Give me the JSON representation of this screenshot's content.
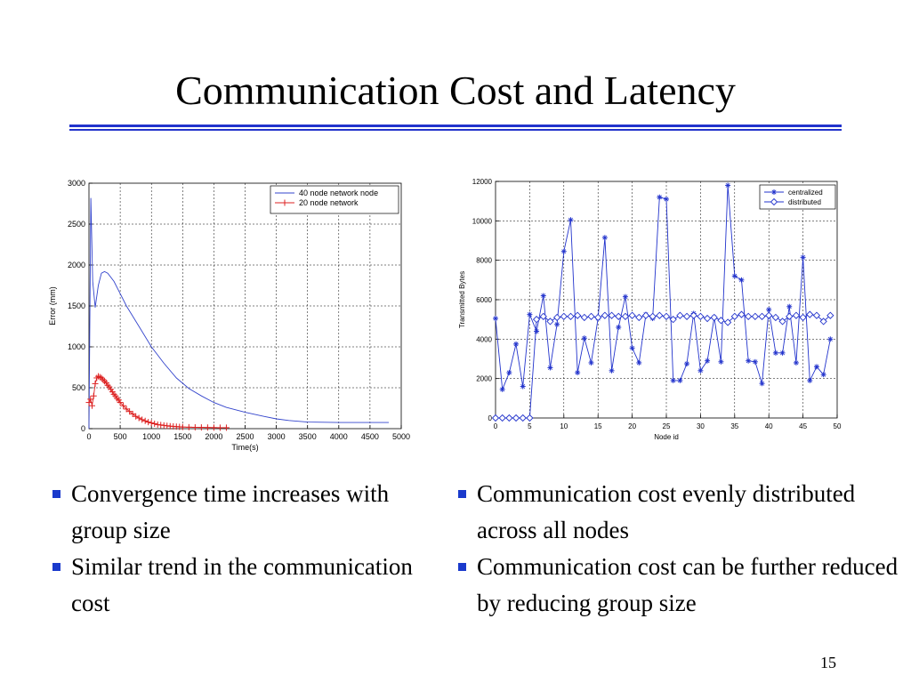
{
  "slide": {
    "title": "Communication Cost and Latency",
    "page_number": "15",
    "accent_color": "#2233cc"
  },
  "bullets_left": [
    {
      "text": "Convergence time increases with group size"
    },
    {
      "text": "Similar trend in the communication cost"
    }
  ],
  "bullets_right": [
    {
      "text": "Communication cost evenly distributed across all nodes"
    },
    {
      "text": "Communication cost can be further reduced by reducing group size"
    }
  ],
  "chart_data": [
    {
      "type": "line",
      "title": "",
      "xlabel": "Time(s)",
      "ylabel": "Error (mm)",
      "xlim": [
        0,
        5000
      ],
      "ylim": [
        0,
        3000
      ],
      "xticks": [
        0,
        500,
        1000,
        1500,
        2000,
        2500,
        3000,
        3500,
        4000,
        4500,
        5000
      ],
      "yticks": [
        0,
        500,
        1000,
        1500,
        2000,
        2500,
        3000
      ],
      "grid": true,
      "legend": "top-right",
      "series": [
        {
          "name": "40 node network node",
          "color": "#3344cc",
          "marker": "none",
          "x": [
            0,
            30,
            60,
            100,
            150,
            200,
            250,
            300,
            400,
            500,
            600,
            800,
            1000,
            1200,
            1400,
            1600,
            1800,
            2000,
            2200,
            2500,
            2800,
            3000,
            3200,
            3500,
            4000,
            4500,
            4800
          ],
          "y": [
            0,
            2820,
            1800,
            1480,
            1750,
            1900,
            1920,
            1900,
            1800,
            1650,
            1500,
            1250,
            1000,
            800,
            620,
            490,
            400,
            320,
            260,
            200,
            150,
            120,
            100,
            80,
            75,
            75,
            75
          ]
        },
        {
          "name": "20 node network",
          "color": "#dd2222",
          "marker": "plus",
          "x": [
            0,
            25,
            50,
            75,
            100,
            125,
            150,
            175,
            200,
            225,
            250,
            275,
            300,
            325,
            350,
            375,
            400,
            425,
            450,
            475,
            500,
            550,
            600,
            650,
            700,
            750,
            800,
            850,
            900,
            950,
            1000,
            1050,
            1100,
            1150,
            1200,
            1250,
            1300,
            1350,
            1400,
            1450,
            1500,
            1600,
            1700,
            1800,
            1900,
            2000,
            2100,
            2200
          ],
          "y": [
            320,
            360,
            280,
            400,
            550,
            620,
            640,
            630,
            620,
            600,
            580,
            560,
            530,
            510,
            480,
            450,
            420,
            400,
            370,
            350,
            320,
            280,
            240,
            210,
            180,
            150,
            130,
            110,
            95,
            80,
            70,
            60,
            50,
            45,
            40,
            35,
            30,
            28,
            25,
            22,
            20,
            18,
            16,
            15,
            14,
            13,
            12,
            12
          ]
        }
      ]
    },
    {
      "type": "line",
      "title": "",
      "xlabel": "Node id",
      "ylabel": "Transmitted Bytes",
      "xlim": [
        0,
        50
      ],
      "ylim": [
        0,
        12000
      ],
      "xticks": [
        0,
        5,
        10,
        15,
        20,
        25,
        30,
        35,
        40,
        45,
        50
      ],
      "yticks": [
        0,
        2000,
        4000,
        6000,
        8000,
        10000,
        12000
      ],
      "grid": true,
      "legend": "top-right",
      "series": [
        {
          "name": "centralized",
          "color": "#2233cc",
          "marker": "star",
          "x": [
            0,
            1,
            2,
            3,
            4,
            5,
            6,
            7,
            8,
            9,
            10,
            11,
            12,
            13,
            14,
            15,
            16,
            17,
            18,
            19,
            20,
            21,
            22,
            23,
            24,
            25,
            26,
            27,
            28,
            29,
            30,
            31,
            32,
            33,
            34,
            35,
            36,
            37,
            38,
            39,
            40,
            41,
            42,
            43,
            44,
            45,
            46,
            47,
            48,
            49
          ],
          "y": [
            5050,
            1450,
            2300,
            3750,
            1600,
            5250,
            4400,
            6200,
            2550,
            4750,
            8450,
            10050,
            2300,
            4050,
            2800,
            5050,
            9150,
            2400,
            4600,
            6150,
            3550,
            2800,
            5250,
            5050,
            11200,
            11100,
            1900,
            1900,
            2750,
            5300,
            2400,
            2900,
            5100,
            2850,
            11800,
            7200,
            7000,
            2900,
            2850,
            1750,
            5500,
            3300,
            3300,
            5650,
            2800,
            8150,
            1900,
            2600,
            2200,
            4000
          ]
        },
        {
          "name": "distributed",
          "color": "#2233cc",
          "marker": "diamond",
          "x": [
            0,
            1,
            2,
            3,
            4,
            5,
            6,
            7,
            8,
            9,
            10,
            11,
            12,
            13,
            14,
            15,
            16,
            17,
            18,
            19,
            20,
            21,
            22,
            23,
            24,
            25,
            26,
            27,
            28,
            29,
            30,
            31,
            32,
            33,
            34,
            35,
            36,
            37,
            38,
            39,
            40,
            41,
            42,
            43,
            44,
            45,
            46,
            47,
            48,
            49
          ],
          "y": [
            0,
            0,
            0,
            0,
            0,
            0,
            5000,
            5150,
            4900,
            5100,
            5150,
            5150,
            5200,
            5100,
            5150,
            5100,
            5200,
            5200,
            5150,
            5150,
            5200,
            5100,
            5200,
            5150,
            5200,
            5150,
            5000,
            5200,
            5150,
            5200,
            5150,
            5050,
            5100,
            4950,
            4850,
            5150,
            5250,
            5150,
            5150,
            5150,
            5200,
            5100,
            4900,
            5150,
            5200,
            5100,
            5250,
            5200,
            4900,
            5200
          ]
        }
      ]
    }
  ]
}
